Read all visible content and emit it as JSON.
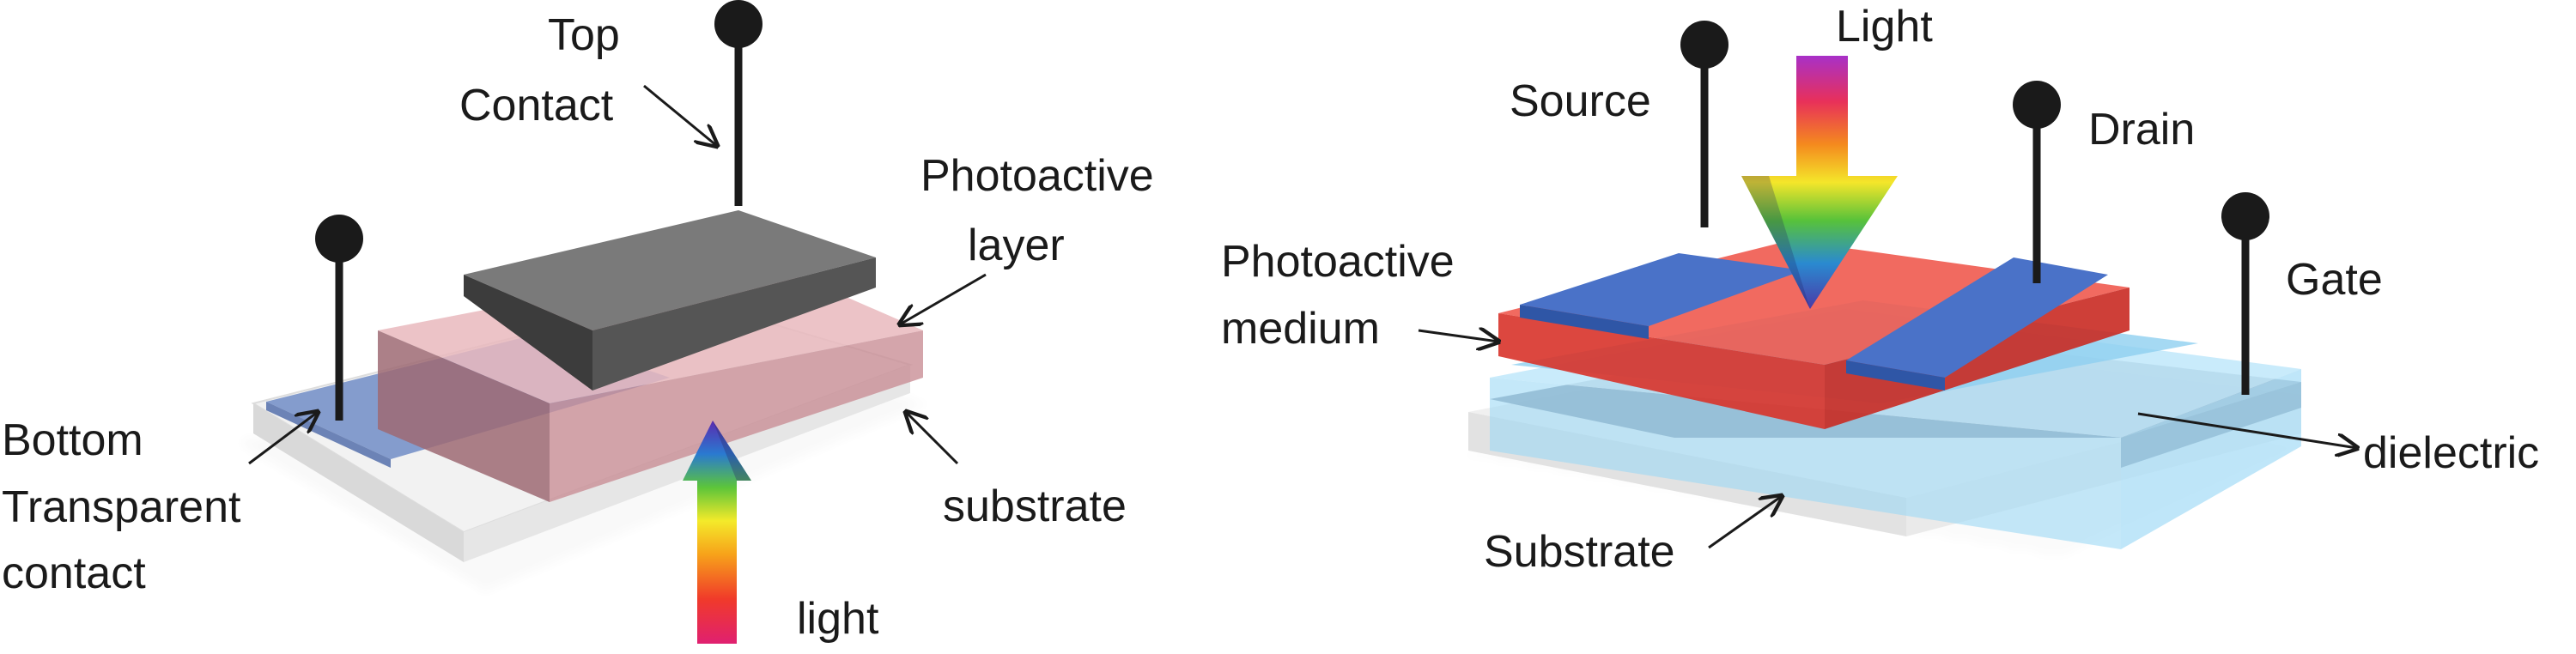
{
  "left_device": {
    "labels": {
      "top_contact_line1": "Top",
      "top_contact_line2": "Contact",
      "photoactive_line1": "Photoactive",
      "photoactive_line2": "layer",
      "bottom_line1": "Bottom",
      "bottom_line2": "Transparent",
      "bottom_line3": "contact",
      "substrate": "substrate",
      "light": "light"
    }
  },
  "right_device": {
    "labels": {
      "light": "Light",
      "source": "Source",
      "drain": "Drain",
      "gate": "Gate",
      "photoactive_line1": "Photoactive",
      "photoactive_line2": "medium",
      "dielectric": "dielectric",
      "substrate": "Substrate"
    }
  },
  "colors": {
    "top_contact": "#666666",
    "photoactive_layer_left": "#c98f96",
    "bottom_contact": "#5f7fc0",
    "substrate": "#e8e8e8",
    "photoactive_medium": "#e0392f",
    "source_drain": "#4a72c8",
    "dielectric": "#8fd0f0",
    "gate": "#6e7f95",
    "probe": "#1a1a1a"
  }
}
